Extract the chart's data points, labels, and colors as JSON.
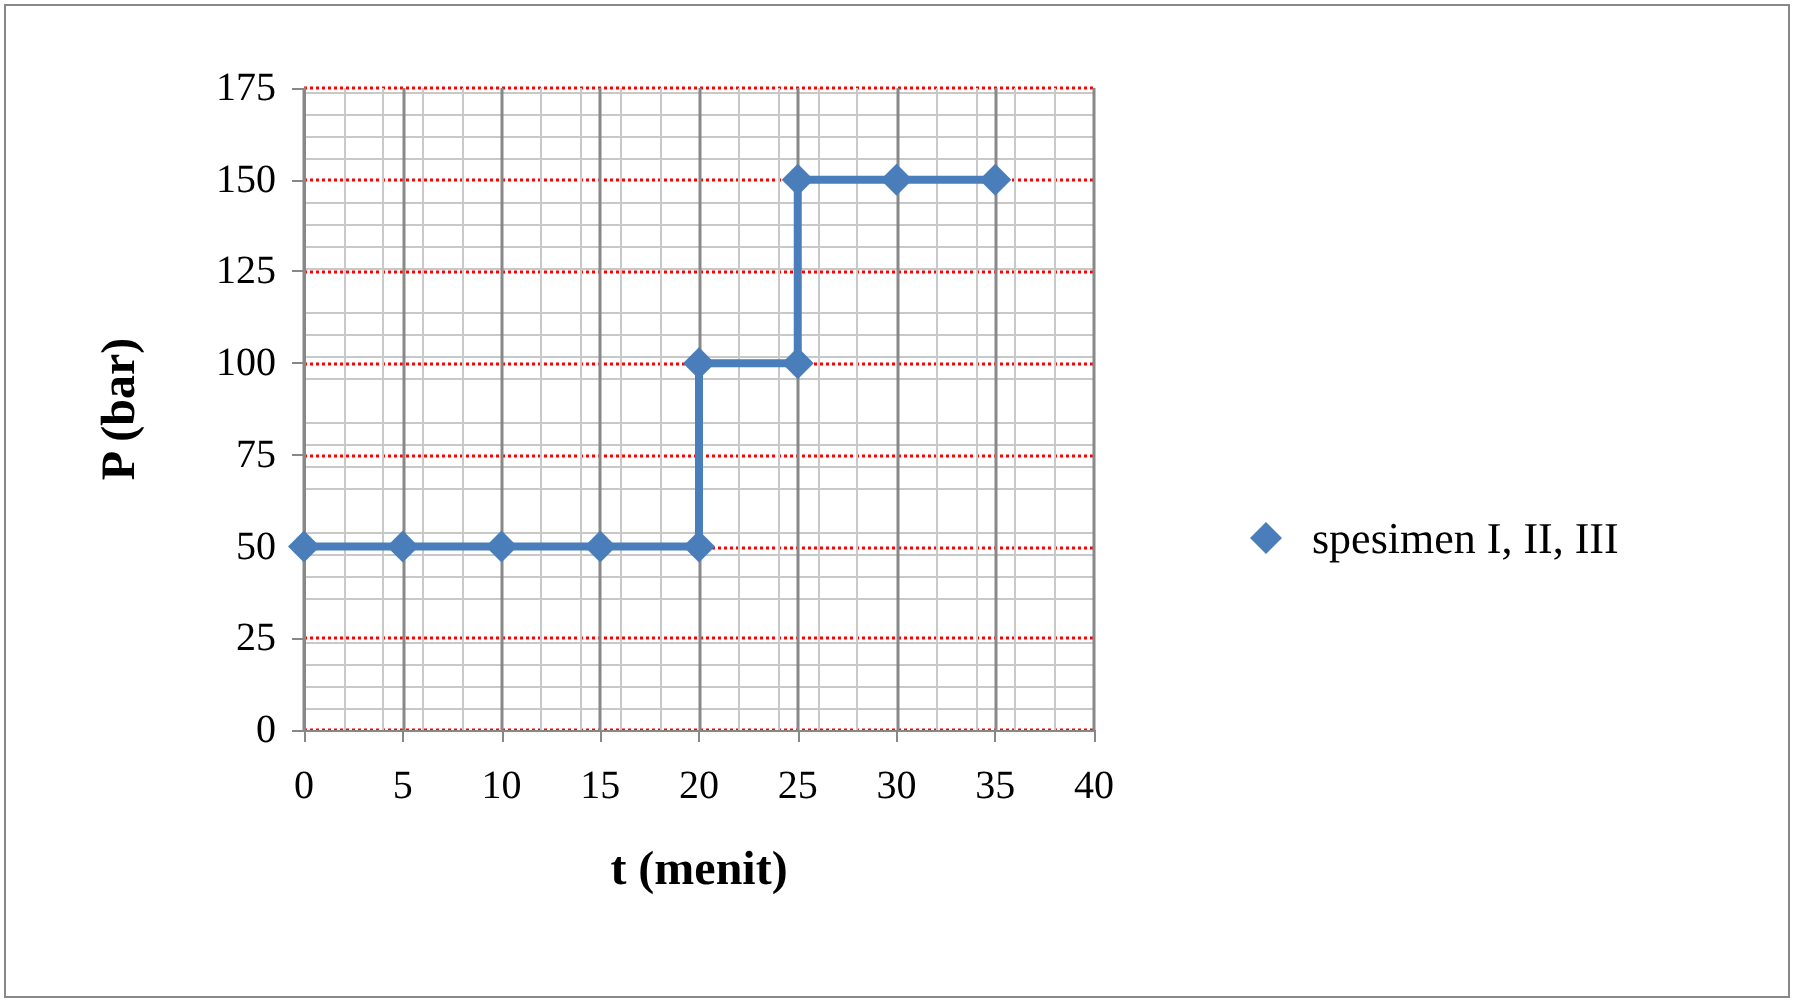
{
  "chart_data": {
    "type": "line",
    "xlabel": "t (menit)",
    "ylabel": "P (bar)",
    "xlim": [
      0,
      40
    ],
    "xticks": [
      0,
      5,
      10,
      15,
      20,
      25,
      30,
      35,
      40
    ],
    "ylim": [
      0,
      175
    ],
    "yticks": [
      0,
      25,
      50,
      75,
      100,
      125,
      150,
      175
    ],
    "series": [
      {
        "name": "spesimen I, II, III",
        "color": "#4a7ebb",
        "x": [
          0,
          5,
          10,
          15,
          20,
          20,
          25,
          25,
          30,
          35
        ],
        "values": [
          50,
          50,
          50,
          50,
          50,
          100,
          100,
          150,
          150,
          150
        ]
      }
    ],
    "marker": "diamond",
    "line_style": "solid",
    "grid": true,
    "legend": "right"
  }
}
